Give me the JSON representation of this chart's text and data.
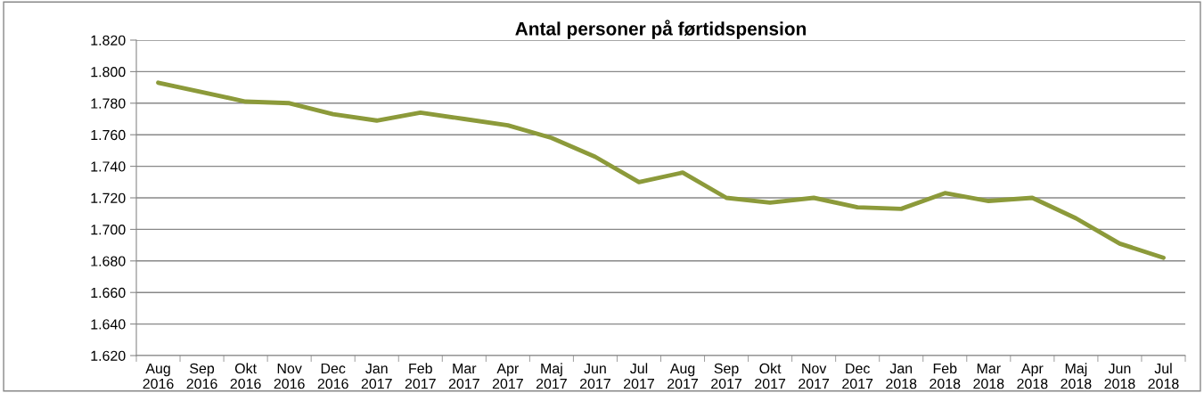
{
  "chart_data": {
    "type": "line",
    "title": "Antal personer på førtidspension",
    "categories": [
      "Aug\n2016",
      "Sep\n2016",
      "Okt\n2016",
      "Nov\n2016",
      "Dec\n2016",
      "Jan\n2017",
      "Feb\n2017",
      "Mar\n2017",
      "Apr\n2017",
      "Maj\n2017",
      "Jun\n2017",
      "Jul\n2017",
      "Aug\n2017",
      "Sep\n2017",
      "Okt\n2017",
      "Nov\n2017",
      "Dec\n2017",
      "Jan\n2018",
      "Feb\n2018",
      "Mar\n2018",
      "Apr\n2018",
      "Maj\n2018",
      "Jun\n2018",
      "Jul\n2018"
    ],
    "series": [
      {
        "color": "#8c9a3a",
        "values": [
          1793,
          1787,
          1781,
          1780,
          1773,
          1769,
          1774,
          1770,
          1766,
          1758,
          1746,
          1730,
          1736,
          1720,
          1717,
          1720,
          1714,
          1713,
          1723,
          1718,
          1720,
          1707,
          1691,
          1682
        ]
      }
    ],
    "ylim": [
      1620,
      1820
    ],
    "yticks": [
      {
        "value": 1620,
        "label": "1.620"
      },
      {
        "value": 1640,
        "label": "1.640"
      },
      {
        "value": 1660,
        "label": "1.660"
      },
      {
        "value": 1680,
        "label": "1.680"
      },
      {
        "value": 1700,
        "label": "1.700"
      },
      {
        "value": 1720,
        "label": "1.720"
      },
      {
        "value": 1740,
        "label": "1.740"
      },
      {
        "value": 1760,
        "label": "1.760"
      },
      {
        "value": 1780,
        "label": "1.780"
      },
      {
        "value": 1800,
        "label": "1.800"
      },
      {
        "value": 1820,
        "label": "1.820"
      }
    ],
    "grid": "y",
    "marker": "none",
    "line_style": "solid"
  }
}
